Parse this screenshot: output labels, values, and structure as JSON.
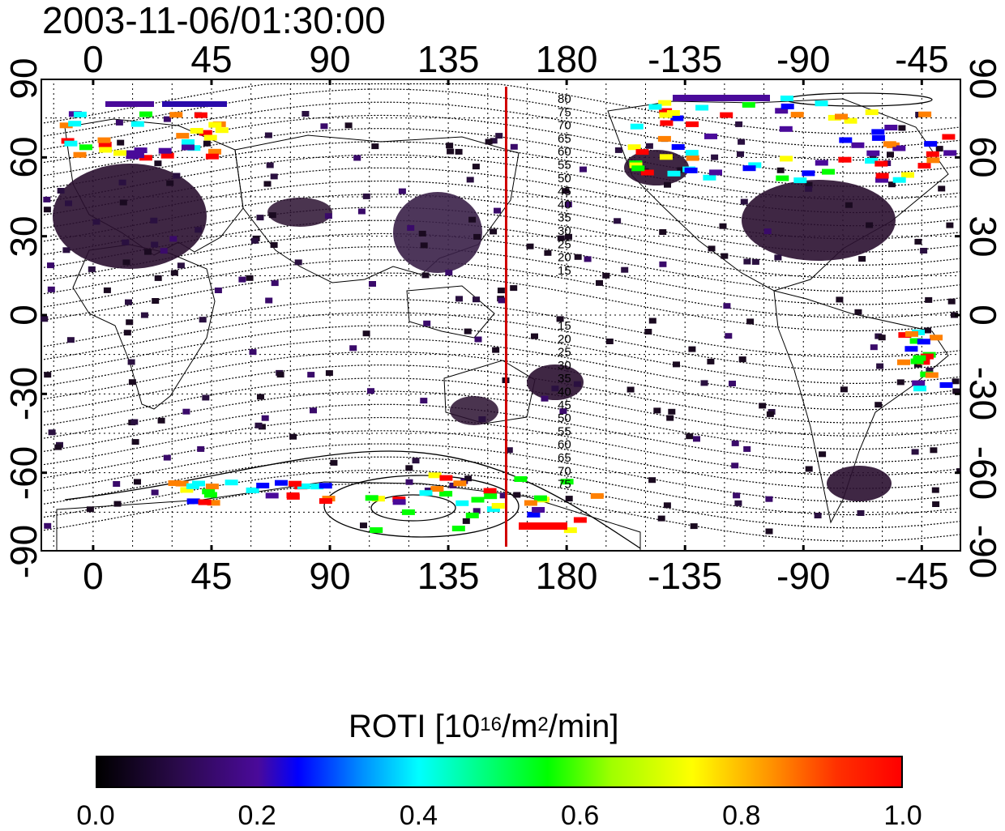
{
  "title": "2003-11-06/01:30:00",
  "map": {
    "lon_ticks": [
      "0",
      "45",
      "90",
      "135",
      "180",
      "-135",
      "-90",
      "-45"
    ],
    "lat_ticks_left": [
      "90",
      "60",
      "30",
      "0",
      "-30",
      "-60",
      "-90"
    ],
    "lat_ticks_right": [
      "90",
      "60",
      "30",
      "0",
      "-30",
      "-60",
      "-90"
    ],
    "lon_range": [
      -20,
      330
    ],
    "lat_range": [
      -90,
      90
    ],
    "terminator_line_lon": 157,
    "terminator_color": "#d00000",
    "contour_labels_north": [
      "80",
      "75",
      "70",
      "65",
      "60",
      "55",
      "50",
      "45",
      "40",
      "35",
      "30",
      "25",
      "20",
      "15"
    ],
    "contour_labels_south": [
      "15",
      "20",
      "25",
      "30",
      "35",
      "40",
      "45",
      "50",
      "55",
      "60",
      "65",
      "70",
      "75"
    ]
  },
  "colorbar": {
    "title": "ROTI  [10",
    "exp": "16",
    "unit_mid": "/m",
    "exp2": "2",
    "unit_end": "/min]",
    "ticks": [
      "0.0",
      "0.2",
      "0.4",
      "0.6",
      "0.8",
      "1.0"
    ],
    "colors": [
      "#000000",
      "#4a0a9a",
      "#0000ff",
      "#00ffff",
      "#00ff00",
      "#ffff00",
      "#ff0000"
    ]
  }
}
